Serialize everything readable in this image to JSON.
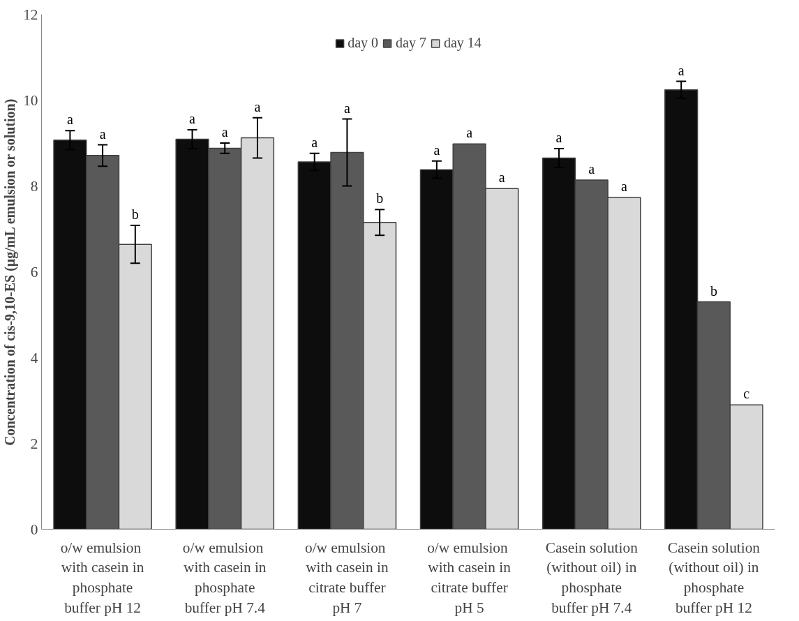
{
  "chart_data": {
    "type": "bar",
    "ylabel": "Concentration of cis-9,10-ES (μg/mL emulsion or solution)",
    "categories": [
      "o/w  emulsion\nwith casein in\nphosphate\nbuffer pH 12",
      "o/w  emulsion\nwith casein in\nphosphate\nbuffer pH 7.4",
      "o/w  emulsion\nwith casein in\ncitrate buffer\npH 7",
      "o/w  emulsion\nwith casein in\ncitrate buffer\npH 5",
      "Casein solution\n(without oil) in\nphosphate\nbuffer pH 7.4",
      "Casein solution\n(without oil) in\nphosphate\nbuffer pH 12"
    ],
    "series": [
      {
        "name": "day 0",
        "color": "#0d0d0d",
        "values": [
          9.07,
          9.09,
          8.56,
          8.38,
          8.65,
          10.24
        ],
        "errors": [
          0.22,
          0.22,
          0.2,
          0.2,
          0.22,
          0.2
        ],
        "value_labels": [
          "a",
          "a",
          "a",
          "a",
          "a",
          "a"
        ]
      },
      {
        "name": "day 7",
        "color": "#595959",
        "values": [
          8.71,
          8.88,
          8.78,
          8.98,
          8.14,
          5.3
        ],
        "errors": [
          0.25,
          0.12,
          0.78,
          null,
          null,
          null
        ],
        "value_labels": [
          "a",
          "a",
          "a",
          "a",
          "a",
          "b"
        ]
      },
      {
        "name": "day 14",
        "color": "#d9d9d9",
        "values": [
          6.64,
          9.12,
          7.15,
          7.94,
          7.73,
          2.9
        ],
        "errors": [
          0.44,
          0.47,
          0.3,
          null,
          null,
          null
        ],
        "value_labels": [
          "b",
          "a",
          "b",
          "a",
          "a",
          "c"
        ]
      }
    ],
    "ylim": [
      0,
      12
    ],
    "yticks": [
      0,
      2,
      4,
      6,
      8,
      10,
      12
    ],
    "grid": false,
    "legend": "top"
  }
}
